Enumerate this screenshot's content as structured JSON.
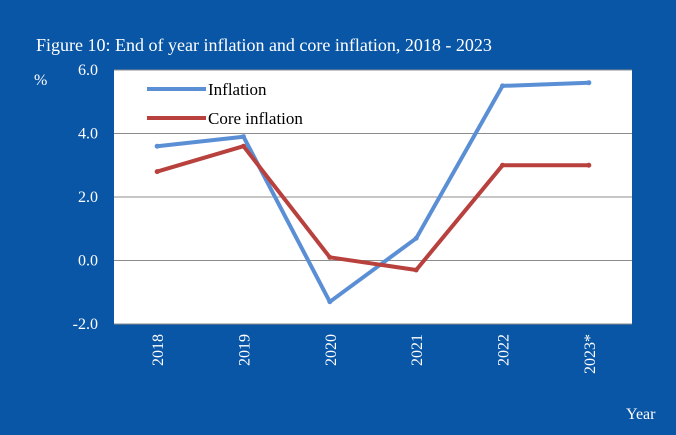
{
  "chart_data": {
    "type": "line",
    "title": "Figure 10: End of year inflation  and core inflation, 2018 - 2023",
    "ylabel": "%",
    "xlabel": "Year",
    "categories": [
      "2018",
      "2019",
      "2020",
      "2021",
      "2022",
      "2023*"
    ],
    "y_ticks": [
      "6.0",
      "4.0",
      "2.0",
      "0.0",
      "-2.0"
    ],
    "ylim": [
      -2,
      6
    ],
    "grid": true,
    "legend_position": "top-left",
    "series": [
      {
        "name": "Inflation",
        "color": "#5b8fd5",
        "values": [
          3.6,
          3.9,
          -1.3,
          0.7,
          5.5,
          5.6
        ]
      },
      {
        "name": "Core inflation",
        "color": "#b8413e",
        "values": [
          2.8,
          3.6,
          0.1,
          -0.3,
          3.0,
          3.0
        ]
      }
    ]
  },
  "colors": {
    "frame": "#0a56a6",
    "plot_bg": "#ffffff",
    "grid": "#8c8c8c"
  }
}
